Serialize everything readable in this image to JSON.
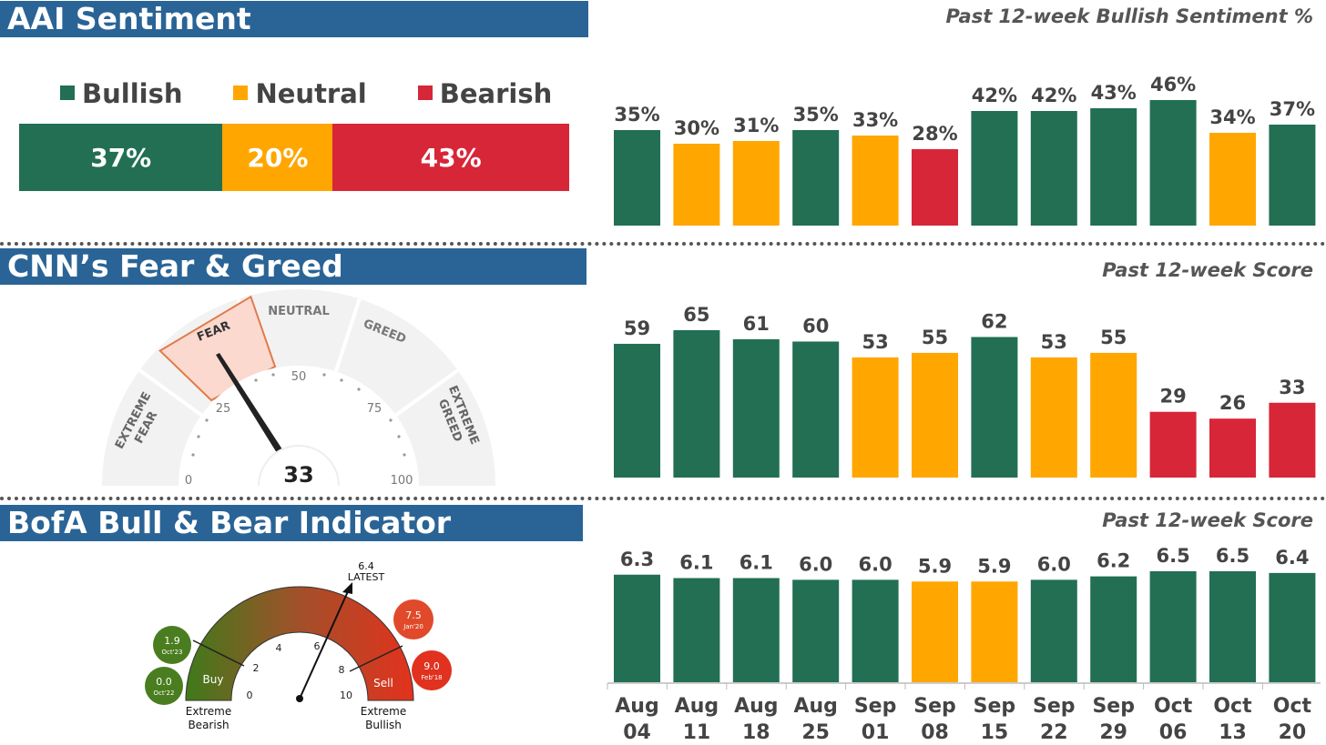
{
  "colors": {
    "green": "#226f54",
    "yellow": "#ffa600",
    "red": "#d72638",
    "banner": "#2a6496"
  },
  "aai": {
    "title": "AAI Sentiment",
    "chart_title": "Past 12-week Bullish Sentiment %",
    "legend": [
      {
        "label": "Bullish",
        "color": "green"
      },
      {
        "label": "Neutral",
        "color": "yellow"
      },
      {
        "label": "Bearish",
        "color": "red"
      }
    ],
    "current": [
      {
        "label": "37%",
        "value": 37,
        "color": "green"
      },
      {
        "label": "20%",
        "value": 20,
        "color": "yellow"
      },
      {
        "label": "43%",
        "value": 43,
        "color": "red"
      }
    ]
  },
  "cnn": {
    "title": "CNN’s Fear & Greed",
    "chart_title": "Past 12-week Score",
    "gauge": {
      "score": "33",
      "zones": [
        "EXTREME FEAR",
        "FEAR",
        "NEUTRAL",
        "GREED",
        "EXTREME GREED"
      ],
      "ticks": [
        "0",
        "25",
        "50",
        "75",
        "100"
      ]
    }
  },
  "bofa": {
    "title": "BofA Bull & Bear Indicator",
    "chart_title": "Past 12-week Score",
    "gauge": {
      "latest_value": "6.4",
      "latest_label": "LATEST",
      "ticks": [
        "0",
        "2",
        "4",
        "6",
        "8",
        "10"
      ],
      "buy_label": "Buy",
      "sell_label": "Sell",
      "left_caption": [
        "Extreme",
        "Bearish"
      ],
      "right_caption": [
        "Extreme",
        "Bullish"
      ],
      "bubbles": [
        {
          "value": "1.9",
          "date": "Oct'23",
          "color": "#4a7d1f"
        },
        {
          "value": "0.0",
          "date": "Oct'22",
          "color": "#4a7d1f"
        },
        {
          "value": "7.5",
          "date": "Jan'20",
          "color": "#e04a2a"
        },
        {
          "value": "9.0",
          "date": "Feb'18",
          "color": "#e0321f"
        }
      ]
    }
  },
  "chart_data": [
    {
      "type": "bar",
      "title": "Past 12-week Bullish Sentiment %",
      "categories": [
        "Aug 04",
        "Aug 11",
        "Aug 18",
        "Aug 25",
        "Sep 01",
        "Sep 08",
        "Sep 15",
        "Sep 22",
        "Sep 29",
        "Oct 06",
        "Oct 13",
        "Oct 20"
      ],
      "values": [
        35,
        30,
        31,
        35,
        33,
        28,
        42,
        42,
        43,
        46,
        34,
        37
      ],
      "labels": [
        "35%",
        "30%",
        "31%",
        "35%",
        "33%",
        "28%",
        "42%",
        "42%",
        "43%",
        "46%",
        "34%",
        "37%"
      ],
      "colors": [
        "green",
        "yellow",
        "yellow",
        "green",
        "yellow",
        "red",
        "green",
        "green",
        "green",
        "green",
        "yellow",
        "green"
      ],
      "ylim": [
        0,
        46
      ]
    },
    {
      "type": "bar",
      "title": "Past 12-week Score",
      "categories": [
        "Aug 04",
        "Aug 11",
        "Aug 18",
        "Aug 25",
        "Sep 01",
        "Sep 08",
        "Sep 15",
        "Sep 22",
        "Sep 29",
        "Oct 06",
        "Oct 13",
        "Oct 20"
      ],
      "values": [
        59,
        65,
        61,
        60,
        53,
        55,
        62,
        53,
        55,
        29,
        26,
        33
      ],
      "labels": [
        "59",
        "65",
        "61",
        "60",
        "53",
        "55",
        "62",
        "53",
        "55",
        "29",
        "26",
        "33"
      ],
      "colors": [
        "green",
        "green",
        "green",
        "green",
        "yellow",
        "yellow",
        "green",
        "yellow",
        "yellow",
        "red",
        "red",
        "red"
      ],
      "ylim": [
        0,
        65
      ]
    },
    {
      "type": "bar",
      "title": "Past 12-week Score",
      "categories": [
        "Aug 04",
        "Aug 11",
        "Aug 18",
        "Aug 25",
        "Sep 01",
        "Sep 08",
        "Sep 15",
        "Sep 22",
        "Sep 29",
        "Oct 06",
        "Oct 13",
        "Oct 20"
      ],
      "values": [
        6.3,
        6.1,
        6.1,
        6.0,
        6.0,
        5.9,
        5.9,
        6.0,
        6.2,
        6.5,
        6.5,
        6.4
      ],
      "labels": [
        "6.3",
        "6.1",
        "6.1",
        "6.0",
        "6.0",
        "5.9",
        "5.9",
        "6.0",
        "6.2",
        "6.5",
        "6.5",
        "6.4"
      ],
      "colors": [
        "green",
        "green",
        "green",
        "green",
        "green",
        "yellow",
        "yellow",
        "green",
        "green",
        "green",
        "green",
        "green"
      ],
      "ylim": [
        0,
        6.5
      ]
    }
  ],
  "x_axis": [
    [
      "Aug",
      "04"
    ],
    [
      "Aug",
      "11"
    ],
    [
      "Aug",
      "18"
    ],
    [
      "Aug",
      "25"
    ],
    [
      "Sep",
      "01"
    ],
    [
      "Sep",
      "08"
    ],
    [
      "Sep",
      "15"
    ],
    [
      "Sep",
      "22"
    ],
    [
      "Sep",
      "29"
    ],
    [
      "Oct",
      "06"
    ],
    [
      "Oct",
      "13"
    ],
    [
      "Oct",
      "20"
    ]
  ]
}
